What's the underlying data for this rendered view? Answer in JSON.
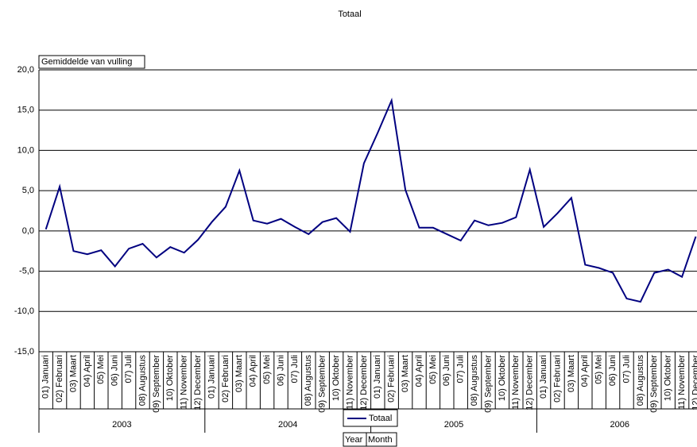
{
  "chart_data": {
    "type": "line",
    "title": "Totaal",
    "y_field": "Gemiddelde van vulling",
    "row_fields": [
      "Year",
      "Month"
    ],
    "categories": [
      "01) Januari",
      "02) Februari",
      "03) Maart",
      "04) April",
      "05) Mei",
      "06) Juni",
      "07) Juli",
      "08) Augustus",
      "09) September",
      "10) Oktober",
      "11) November",
      "12) December",
      "01) Januari",
      "02) Februari",
      "03) Maart",
      "04) April",
      "05) Mei",
      "06) Juni",
      "07) Juli",
      "08) Augustus",
      "09) September",
      "10) Oktober",
      "11) November",
      "12) December",
      "01) Januari",
      "02) Februari",
      "03) Maart",
      "04) April",
      "05) Mei",
      "06) Juni",
      "07) Juli",
      "08) Augustus",
      "09) September",
      "10) Oktober",
      "11) November",
      "12) December",
      "01) Januari",
      "02) Februari",
      "03) Maart",
      "04) April",
      "05) Mei",
      "06) Juni",
      "07) Juli",
      "08) Augustus",
      "09) September",
      "10) Oktober",
      "11) November",
      "12) December"
    ],
    "category_groups": [
      "2003",
      "2004",
      "2005",
      "2006"
    ],
    "series": [
      {
        "name": "Totaal",
        "color": "#000080",
        "values": [
          0.2,
          5.5,
          -2.5,
          -2.9,
          -2.4,
          -4.4,
          -2.2,
          -1.6,
          -3.3,
          -2.0,
          -2.7,
          -1.1,
          1.1,
          3.0,
          7.5,
          1.3,
          0.9,
          1.5,
          0.5,
          -0.4,
          1.1,
          1.6,
          -0.1,
          8.4,
          12.2,
          16.2,
          5.1,
          0.4,
          0.4,
          -0.4,
          -1.2,
          1.3,
          0.7,
          1.0,
          1.7,
          7.6,
          0.5,
          2.2,
          4.1,
          -4.2,
          -4.6,
          -5.2,
          -8.4,
          -8.8,
          -5.2,
          -4.8,
          -5.7,
          -0.7
        ]
      }
    ],
    "ylim": [
      -15,
      20
    ],
    "yticks": [
      {
        "value": -15,
        "label": "-15,0"
      },
      {
        "value": -10,
        "label": "-10,0"
      },
      {
        "value": -5,
        "label": "-5,0"
      },
      {
        "value": 0,
        "label": "0,0"
      },
      {
        "value": 5,
        "label": "5,0"
      },
      {
        "value": 10,
        "label": "10,0"
      },
      {
        "value": 15,
        "label": "15,0"
      },
      {
        "value": 20,
        "label": "20,0"
      }
    ],
    "grid": true
  }
}
